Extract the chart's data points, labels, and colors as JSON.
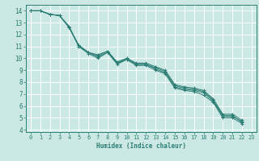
{
  "title": "",
  "xlabel": "Humidex (Indice chaleur)",
  "ylabel": "",
  "background_color": "#cce8e4",
  "grid_color": "#ffffff",
  "line_color": "#2a7d74",
  "xlim": [
    -0.5,
    23.5
  ],
  "ylim": [
    3.8,
    14.5
  ],
  "xticks": [
    0,
    1,
    2,
    3,
    4,
    5,
    6,
    7,
    8,
    9,
    10,
    11,
    12,
    13,
    14,
    15,
    16,
    17,
    18,
    19,
    20,
    21,
    22,
    23
  ],
  "yticks": [
    4,
    5,
    6,
    7,
    8,
    9,
    10,
    11,
    12,
    13,
    14
  ],
  "series": [
    [
      14.0,
      14.0,
      13.7,
      13.6,
      12.6,
      11.1,
      10.5,
      10.1,
      10.5,
      9.6,
      9.9,
      9.5,
      9.5,
      9.2,
      8.9,
      7.7,
      7.5,
      7.4,
      7.2,
      6.5,
      5.2,
      5.2,
      4.6
    ],
    [
      14.0,
      14.0,
      13.7,
      13.6,
      12.7,
      11.0,
      10.5,
      10.3,
      10.6,
      9.7,
      10.0,
      9.6,
      9.6,
      9.3,
      9.0,
      7.8,
      7.6,
      7.5,
      7.3,
      6.6,
      5.3,
      5.3,
      4.8
    ],
    [
      14.0,
      14.0,
      13.7,
      13.6,
      12.6,
      11.0,
      10.4,
      10.0,
      10.5,
      9.5,
      9.9,
      9.4,
      9.4,
      9.0,
      8.7,
      7.5,
      7.3,
      7.2,
      6.9,
      6.3,
      5.0,
      5.0,
      4.5
    ],
    [
      14.0,
      14.0,
      13.7,
      13.6,
      12.6,
      11.1,
      10.5,
      10.2,
      10.6,
      9.6,
      10.0,
      9.5,
      9.5,
      9.1,
      8.8,
      7.6,
      7.4,
      7.3,
      7.1,
      6.4,
      5.1,
      5.1,
      4.7
    ]
  ]
}
